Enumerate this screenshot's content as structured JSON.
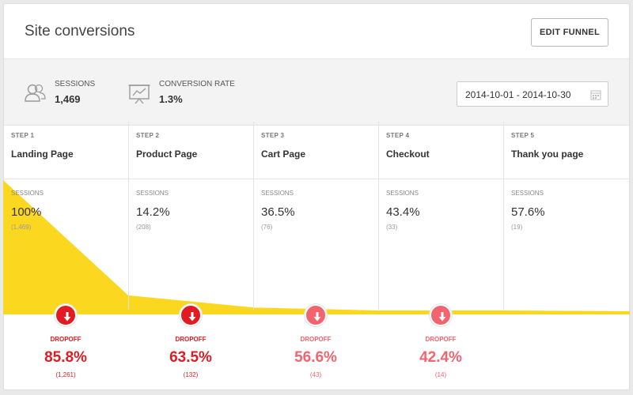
{
  "header": {
    "title": "Site conversions",
    "edit_button": "EDIT FUNNEL"
  },
  "summary": {
    "sessions": {
      "label": "SESSIONS",
      "value": "1,469",
      "icon": "users-icon"
    },
    "conversion": {
      "label": "CONVERSION RATE",
      "value": "1.3%",
      "icon": "presentation-chart-icon"
    },
    "date_range": {
      "value": "2014-10-01 - 2014-10-30",
      "icon": "calendar-icon"
    }
  },
  "colors": {
    "funnel": "#fbd81f",
    "drop_dark": "#e11b22",
    "drop_light": "#f2646e"
  },
  "steps": [
    {
      "step": "STEP 1",
      "name": "Landing Page",
      "sessions_label": "SESSIONS",
      "pct": "100%",
      "count": "(1,469)",
      "fraction": 1.0
    },
    {
      "step": "STEP 2",
      "name": "Product Page",
      "sessions_label": "SESSIONS",
      "pct": "14.2%",
      "count": "(208)",
      "fraction": 0.142
    },
    {
      "step": "STEP 3",
      "name": "Cart Page",
      "sessions_label": "SESSIONS",
      "pct": "36.5%",
      "count": "(76)",
      "fraction": 0.0517
    },
    {
      "step": "STEP 4",
      "name": "Checkout",
      "sessions_label": "SESSIONS",
      "pct": "43.4%",
      "count": "(33)",
      "fraction": 0.0225
    },
    {
      "step": "STEP 5",
      "name": "Thank you page",
      "sessions_label": "SESSIONS",
      "pct": "57.6%",
      "count": "(19)",
      "fraction": 0.0129
    }
  ],
  "dropoffs": [
    {
      "label": "DROPOFF",
      "pct": "85.8%",
      "count": "(1,261)",
      "tone": "dark"
    },
    {
      "label": "DROPOFF",
      "pct": "63.5%",
      "count": "(132)",
      "tone": "dark"
    },
    {
      "label": "DROPOFF",
      "pct": "56.6%",
      "count": "(43)",
      "tone": "light"
    },
    {
      "label": "DROPOFF",
      "pct": "42.4%",
      "count": "(14)",
      "tone": "light"
    }
  ]
}
